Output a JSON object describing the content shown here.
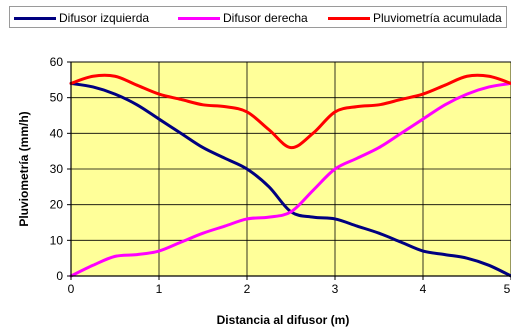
{
  "chart_data": {
    "type": "line",
    "title": "",
    "xlabel": "Distancia al difusor (m)",
    "ylabel": "Pluviometría (mm/h)",
    "xlim": [
      0,
      5
    ],
    "ylim": [
      0,
      60
    ],
    "x_ticks": [
      0,
      1,
      2,
      3,
      4,
      5
    ],
    "y_ticks": [
      0,
      10,
      20,
      30,
      40,
      50,
      60
    ],
    "grid": true,
    "plot_background": "#ffff99",
    "legend_position": "top",
    "series": [
      {
        "name": "Difusor izquierda",
        "color": "#000080",
        "x": [
          0,
          0.25,
          0.5,
          0.75,
          1.0,
          1.25,
          1.5,
          1.75,
          2.0,
          2.25,
          2.5,
          2.75,
          3.0,
          3.25,
          3.5,
          3.75,
          4.0,
          4.25,
          4.5,
          4.75,
          5.0
        ],
        "y": [
          54,
          53,
          51,
          48,
          44,
          40,
          36,
          33,
          30,
          25,
          18,
          16.5,
          16,
          14,
          12,
          9.5,
          7,
          6,
          5,
          3,
          0
        ]
      },
      {
        "name": "Difusor derecha",
        "color": "#ff00ff",
        "x": [
          0,
          0.25,
          0.5,
          0.75,
          1.0,
          1.25,
          1.5,
          1.75,
          2.0,
          2.25,
          2.5,
          2.75,
          3.0,
          3.25,
          3.5,
          3.75,
          4.0,
          4.25,
          4.5,
          4.75,
          5.0
        ],
        "y": [
          0,
          3,
          5.5,
          6,
          7,
          9.5,
          12,
          14,
          16,
          16.5,
          18,
          24,
          30,
          33,
          36,
          40,
          44,
          48,
          51,
          53,
          54
        ]
      },
      {
        "name": "Pluviometría acumulada",
        "color": "#ff0000",
        "x": [
          0,
          0.25,
          0.5,
          0.75,
          1.0,
          1.25,
          1.5,
          1.75,
          2.0,
          2.25,
          2.5,
          2.75,
          3.0,
          3.25,
          3.5,
          3.75,
          4.0,
          4.25,
          4.5,
          4.75,
          5.0
        ],
        "y": [
          54,
          56,
          56,
          53.5,
          51,
          49.5,
          48,
          47.5,
          46,
          41,
          36,
          40,
          46,
          47.5,
          48,
          49.5,
          51,
          53.5,
          56,
          56,
          54
        ]
      }
    ]
  }
}
